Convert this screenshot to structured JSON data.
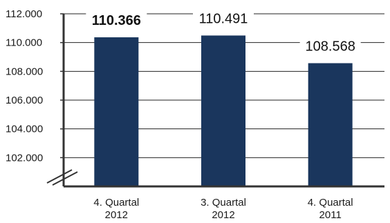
{
  "chart_data": {
    "type": "bar",
    "categories": [
      [
        "4. Quartal",
        "2012"
      ],
      [
        "3. Quartal",
        "2012"
      ],
      [
        "4. Quartal",
        "2011"
      ]
    ],
    "values": [
      110366,
      110491,
      108568
    ],
    "value_labels": [
      "110.366",
      "110.491",
      "108.568"
    ],
    "highlight_index": 0,
    "y_ticks": [
      {
        "value": 102000,
        "label": "102.000"
      },
      {
        "value": 104000,
        "label": "104.000"
      },
      {
        "value": 106000,
        "label": "106.000"
      },
      {
        "value": 108000,
        "label": "108.000"
      },
      {
        "value": 110000,
        "label": "110.000"
      },
      {
        "value": 112000,
        "label": "112.000"
      }
    ],
    "ylim": [
      100000,
      112000
    ],
    "axis_break": true,
    "grid": true,
    "bar_color": "#1a365d",
    "axis_color": "#333333"
  }
}
